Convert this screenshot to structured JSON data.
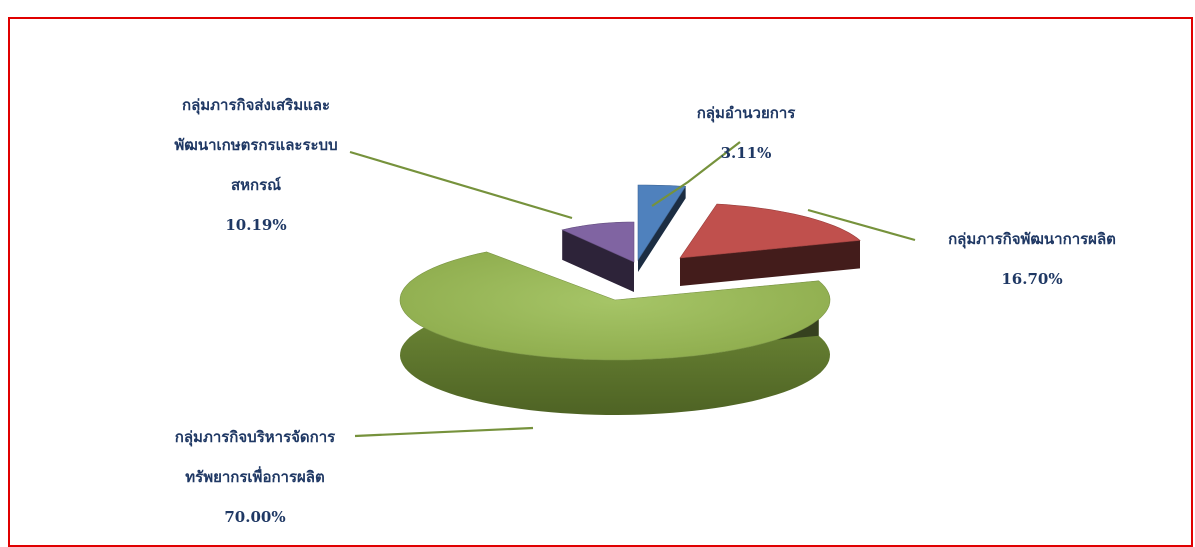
{
  "chart_data": {
    "type": "pie",
    "title": "",
    "slices": [
      {
        "label_lines": [
          "กลุ่มอำนวยการ"
        ],
        "value_label": "3.11%",
        "value": 3.11,
        "color": "#4f81bd"
      },
      {
        "label_lines": [
          "กลุ่มภารกิจพัฒนาการผลิต"
        ],
        "value_label": "16.70%",
        "value": 16.7,
        "color": "#c0504d"
      },
      {
        "label_lines": [
          "กลุ่มภารกิจบริหารจัดการ",
          "ทรัพยากรเพื่อการผลิต"
        ],
        "value_label": "70.00%",
        "value": 70.0,
        "color": "#9bbb59"
      },
      {
        "label_lines": [
          "กลุ่มภารกิจส่งเสริมและ",
          "พัฒนาเกษตรกรและระบบ",
          "สหกรณ์"
        ],
        "value_label": "10.19%",
        "value": 10.19,
        "color": "#8064a2"
      }
    ],
    "style": "3d-exploded",
    "legend": "none"
  }
}
